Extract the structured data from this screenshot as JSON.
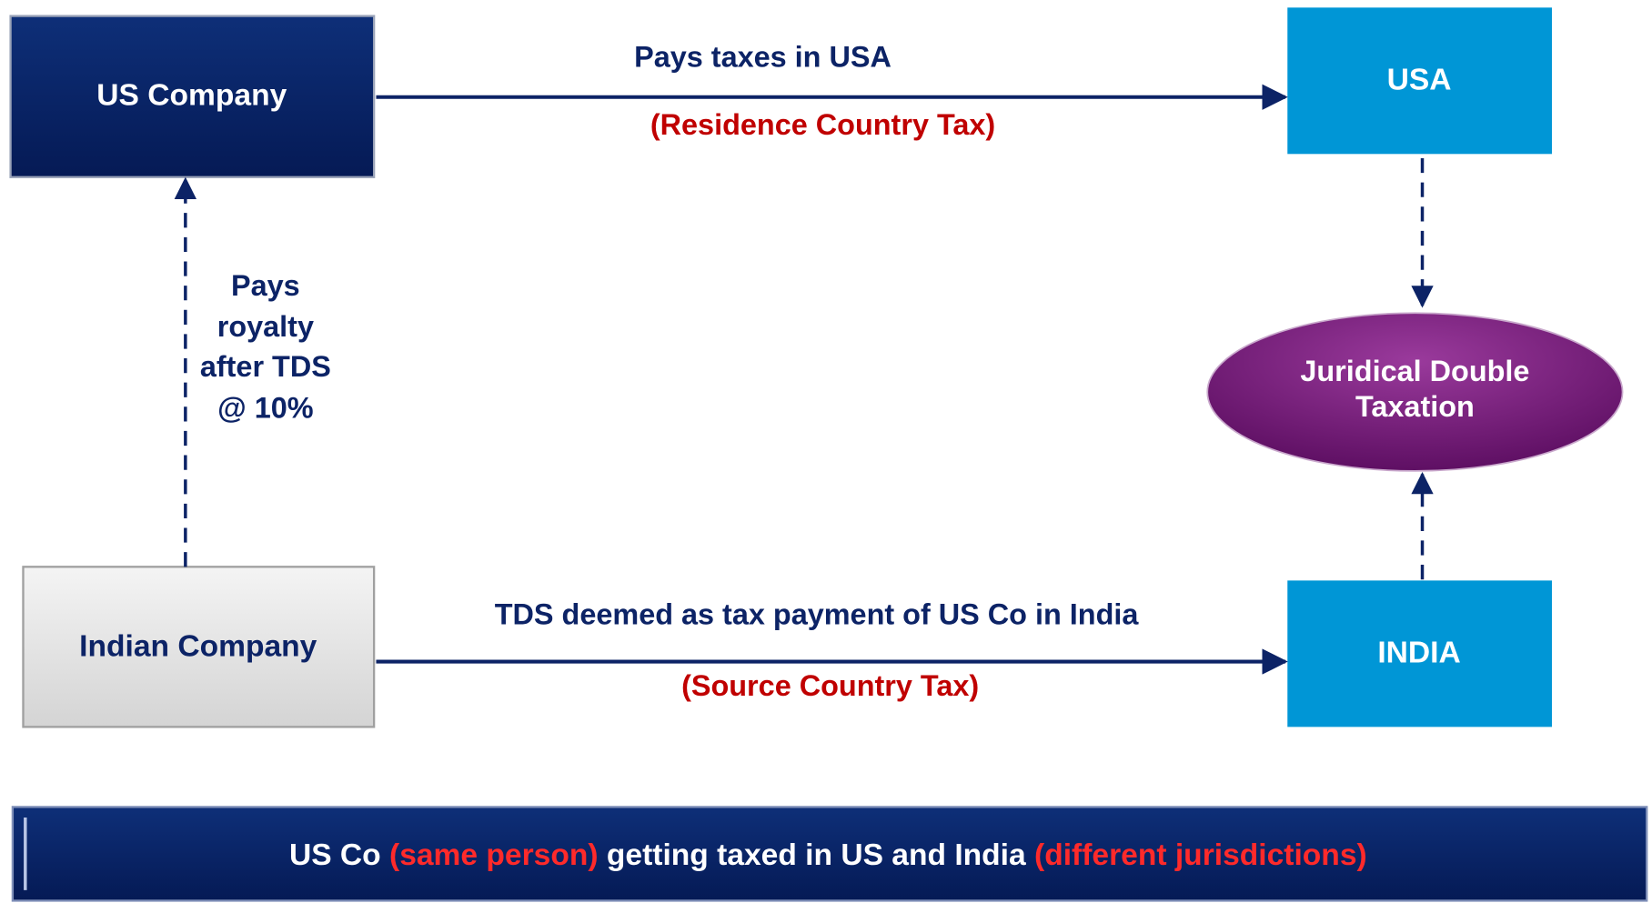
{
  "nodes": [
    {
      "label": "US Company"
    },
    {
      "label": "USA"
    },
    {
      "lines": [
        "Juridical Double",
        "Taxation"
      ]
    },
    {
      "label": "Indian Company"
    },
    {
      "label": "INDIA"
    }
  ],
  "edges": [
    {
      "label": "Pays taxes in USA",
      "sublabel": "(Residence Country Tax)"
    },
    {
      "label": "TDS deemed as tax payment of US Co in India",
      "sublabel": "(Source Country Tax)"
    },
    {
      "lines": [
        "Pays",
        "royalty",
        "after TDS",
        "@ 10%"
      ]
    }
  ],
  "footer": {
    "parts": [
      "US Co ",
      "(same person)",
      " getting taxed in US and India ",
      "(different jurisdictions)"
    ]
  }
}
